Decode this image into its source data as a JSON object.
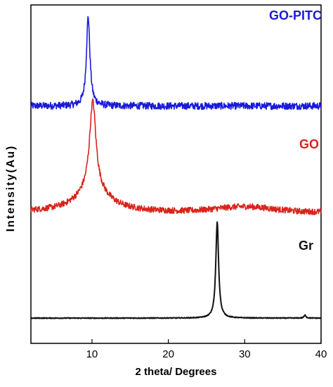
{
  "chart_data": {
    "type": "line",
    "xlabel": "2 theta/  Degrees",
    "ylabel": "Intensity(Au)",
    "xlim": [
      2,
      40
    ],
    "xticks": [
      10,
      20,
      30,
      40
    ],
    "yaxis_ticks_labeled": false,
    "grid": false,
    "legend": "series labels placed at right beside each curve, stacked vertically",
    "series": [
      {
        "name": "GO-PITC",
        "color": "#1a1adc",
        "offset": 2.1,
        "baseline": 0,
        "noise": 0.035,
        "peaks": [
          {
            "x": 9.5,
            "height": 0.88,
            "width": 0.28
          }
        ]
      },
      {
        "name": "GO",
        "color": "#d8241c",
        "offset": 1.05,
        "baseline": 0,
        "noise": 0.03,
        "peaks": [
          {
            "x": 10.1,
            "height": 0.88,
            "width": 0.5
          },
          {
            "x": 10.1,
            "height": 0.22,
            "width": 2.6
          }
        ],
        "bumps": [
          {
            "x": 30,
            "height": 0.05,
            "width": 5
          }
        ]
      },
      {
        "name": "Gr",
        "color": "#111111",
        "offset": 0,
        "baseline": 0,
        "noise": 0.004,
        "peaks": [
          {
            "x": 26.4,
            "height": 0.95,
            "width": 0.22
          },
          {
            "x": 37.9,
            "height": 0.03,
            "width": 0.15
          }
        ]
      }
    ]
  }
}
